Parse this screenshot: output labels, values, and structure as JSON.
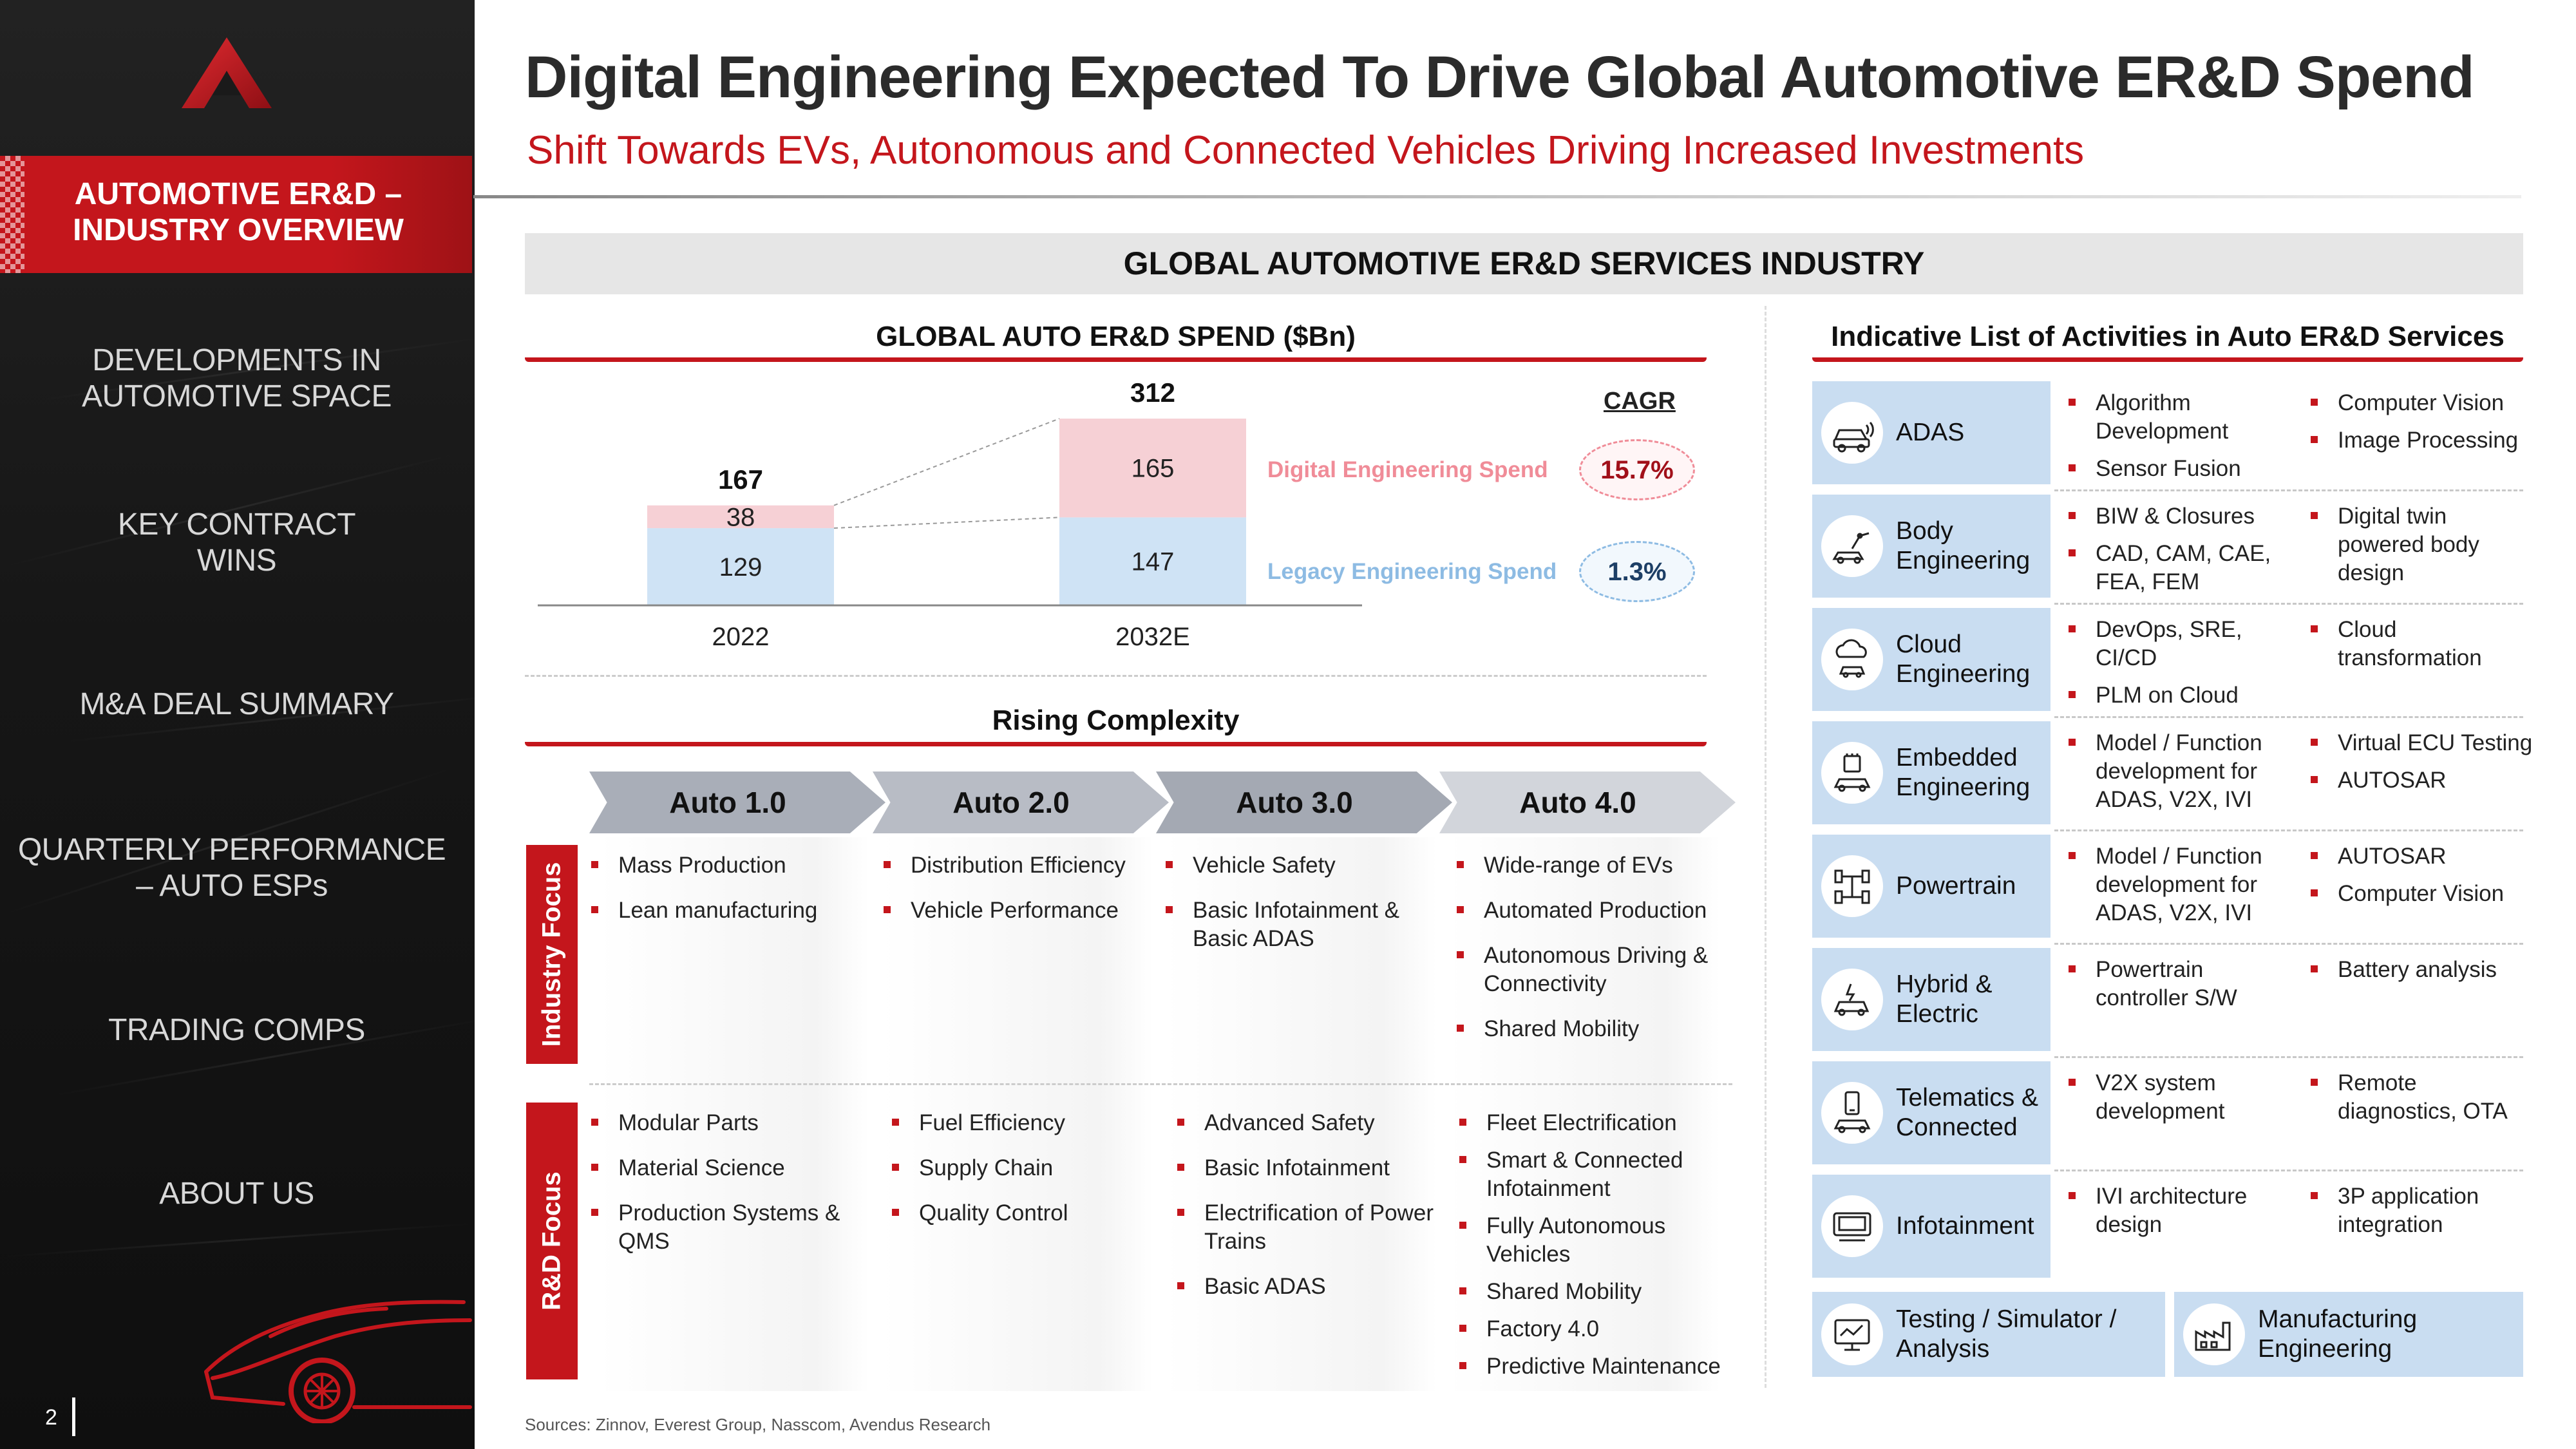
{
  "sidebar": {
    "active": "AUTOMOTIVE ER&D – INDUSTRY OVERVIEW",
    "items": [
      "DEVELOPMENTS IN AUTOMOTIVE SPACE",
      "KEY CONTRACT WINS",
      "M&A DEAL SUMMARY",
      "QUARTERLY PERFORMANCE – AUTO ESPs",
      "TRADING COMPS",
      "ABOUT US"
    ],
    "page_number": "2"
  },
  "header": {
    "title": "Digital Engineering Expected To Drive Global Automotive ER&D Spend",
    "subtitle": "Shift Towards EVs, Autonomous and Connected Vehicles Driving Increased Investments",
    "band": "GLOBAL AUTOMOTIVE ER&D SERVICES INDUSTRY"
  },
  "spend_section": {
    "title": "GLOBAL AUTO ER&D SPEND ($Bn)"
  },
  "chart_data": {
    "type": "bar",
    "stacked": true,
    "categories": [
      "2022",
      "2032E"
    ],
    "totals": [
      167,
      312
    ],
    "series": [
      {
        "name": "Legacy Engineering Spend",
        "values": [
          129,
          147
        ],
        "color": "#cfe3f5"
      },
      {
        "name": "Digital Engineering Spend",
        "values": [
          38,
          165
        ],
        "color": "#f6d0d5"
      }
    ],
    "title": "GLOBAL AUTO ER&D SPEND ($Bn)",
    "xlabel": "",
    "ylabel": "",
    "ylim": [
      0,
      312
    ],
    "grid": false,
    "legend": "right"
  },
  "cagr": {
    "header": "CAGR",
    "digital": {
      "label": "Digital Engineering Spend",
      "value": "15.7%",
      "color": "#f08c98"
    },
    "legacy": {
      "label": "Legacy Engineering Spend",
      "value": "1.3%",
      "color": "#8dbbe3"
    }
  },
  "complexity": {
    "title": "Rising Complexity",
    "stages": [
      "Auto 1.0",
      "Auto 2.0",
      "Auto 3.0",
      "Auto 4.0"
    ],
    "industry_label": "Industry Focus",
    "rd_label": "R&D Focus",
    "industry": [
      [
        "Mass Production",
        "Lean manufacturing"
      ],
      [
        "Distribution Efficiency",
        "Vehicle Performance"
      ],
      [
        "Vehicle Safety",
        "Basic Infotainment & Basic ADAS"
      ],
      [
        "Wide-range of EVs",
        "Automated Production",
        "Autonomous Driving & Connectivity",
        "Shared Mobility"
      ]
    ],
    "rd": [
      [
        "Modular Parts",
        "Material Science",
        "Production Systems & QMS"
      ],
      [
        "Fuel Efficiency",
        "Supply Chain",
        "Quality Control"
      ],
      [
        "Advanced Safety",
        "Basic Infotainment",
        "Electrification of Power Trains",
        "Basic ADAS"
      ],
      [
        "Fleet Electrification",
        "Smart & Connected Infotainment",
        "Fully Autonomous Vehicles",
        "Shared Mobility",
        "Factory 4.0",
        "Predictive Maintenance"
      ]
    ]
  },
  "activities": {
    "title": "Indicative List of Activities in Auto ER&D Services",
    "rows": [
      {
        "name": "ADAS",
        "icon": "car-sensor-icon",
        "col1": [
          "Algorithm Development",
          "Sensor Fusion"
        ],
        "col2": [
          "Computer Vision",
          "Image Processing"
        ]
      },
      {
        "name": "Body Engineering",
        "icon": "robot-arm-car-icon",
        "col1": [
          "BIW & Closures",
          "CAD, CAM, CAE, FEA, FEM"
        ],
        "col2": [
          "Digital twin powered body design"
        ]
      },
      {
        "name": "Cloud Engineering",
        "icon": "cloud-car-icon",
        "col1": [
          "DevOps, SRE, CI/CD",
          "PLM on Cloud"
        ],
        "col2": [
          "Cloud transformation"
        ]
      },
      {
        "name": "Embedded Engineering",
        "icon": "chip-car-icon",
        "col1": [
          "Model / Function development for ADAS, V2X, IVI"
        ],
        "col2": [
          "Virtual ECU Testing",
          "AUTOSAR"
        ]
      },
      {
        "name": "Powertrain",
        "icon": "drivetrain-icon",
        "col1": [
          "Model / Function development for ADAS, V2X, IVI"
        ],
        "col2": [
          "AUTOSAR",
          "Computer Vision"
        ]
      },
      {
        "name": "Hybrid & Electric",
        "icon": "ev-car-icon",
        "col1": [
          "Powertrain controller S/W"
        ],
        "col2": [
          "Battery analysis"
        ]
      },
      {
        "name": "Telematics & Connected",
        "icon": "phone-car-icon",
        "col1": [
          "V2X system development"
        ],
        "col2": [
          "Remote diagnostics, OTA"
        ]
      },
      {
        "name": "Infotainment",
        "icon": "dashboard-screen-icon",
        "col1": [
          "IVI architecture design"
        ],
        "col2": [
          "3P application integration"
        ]
      }
    ],
    "bottom": [
      {
        "name": "Testing / Simulator / Analysis",
        "icon": "testing-monitor-icon"
      },
      {
        "name": "Manufacturing Engineering",
        "icon": "factory-icon"
      }
    ]
  },
  "sources": "Sources: Zinnov, Everest Group, Nasscom, Avendus Research"
}
